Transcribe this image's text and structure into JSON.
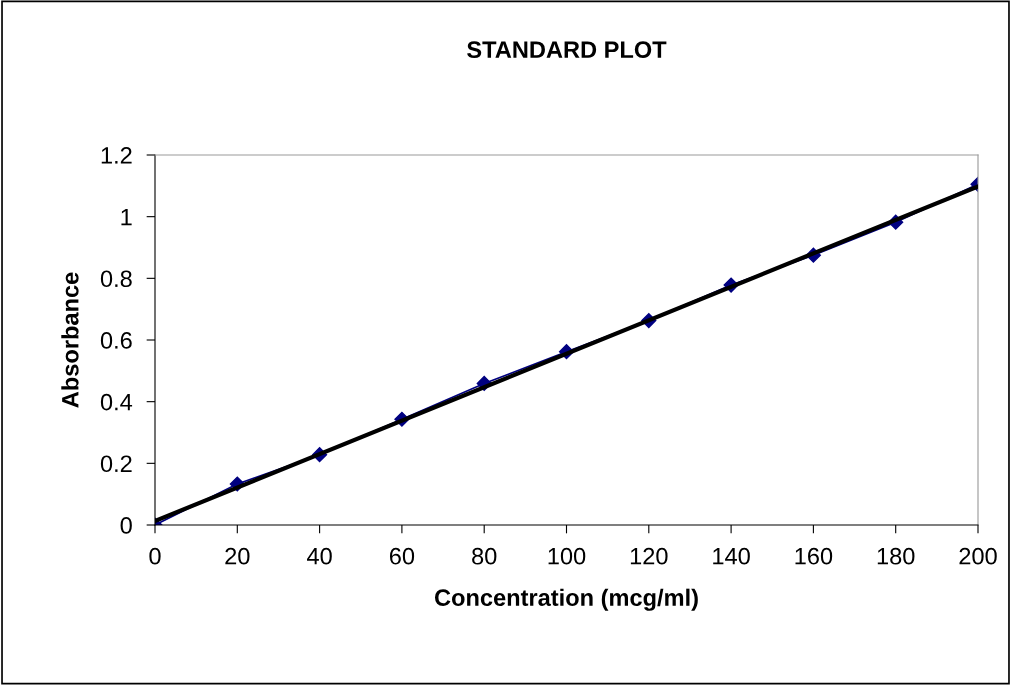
{
  "chart_data": {
    "type": "line",
    "title": "STANDARD PLOT",
    "xlabel": "Concentration (mcg/ml)",
    "ylabel": "Absorbance",
    "x": [
      0,
      20,
      40,
      60,
      80,
      100,
      120,
      140,
      160,
      180,
      200
    ],
    "series": [
      {
        "color": "#000080",
        "marker": "diamond",
        "values": [
          0,
          0.133,
          0.228,
          0.343,
          0.459,
          0.562,
          0.663,
          0.778,
          0.875,
          0.982,
          1.105
        ]
      },
      {
        "type": "line",
        "color": "#000000",
        "marker": "none",
        "x": [
          0,
          200
        ],
        "values": [
          0.013,
          1.098
        ]
      }
    ],
    "xlim": [
      0,
      200
    ],
    "xticks": [
      0,
      20,
      40,
      60,
      80,
      100,
      120,
      140,
      160,
      180,
      200
    ],
    "ylim": [
      0,
      1.2
    ],
    "yticks": [
      0,
      0.2,
      0.4,
      0.6,
      0.8,
      1,
      1.2
    ],
    "grid": false,
    "legend": false
  }
}
